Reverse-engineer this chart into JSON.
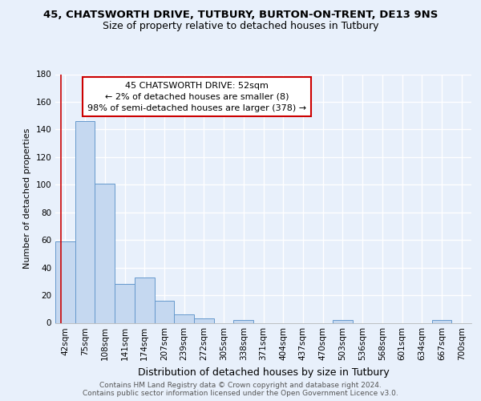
{
  "title1": "45, CHATSWORTH DRIVE, TUTBURY, BURTON-ON-TRENT, DE13 9NS",
  "title2": "Size of property relative to detached houses in Tutbury",
  "xlabel": "Distribution of detached houses by size in Tutbury",
  "ylabel": "Number of detached properties",
  "bar_labels": [
    "42sqm",
    "75sqm",
    "108sqm",
    "141sqm",
    "174sqm",
    "207sqm",
    "239sqm",
    "272sqm",
    "305sqm",
    "338sqm",
    "371sqm",
    "404sqm",
    "437sqm",
    "470sqm",
    "503sqm",
    "536sqm",
    "568sqm",
    "601sqm",
    "634sqm",
    "667sqm",
    "700sqm"
  ],
  "bar_values": [
    59,
    146,
    101,
    28,
    33,
    16,
    6,
    3,
    0,
    2,
    0,
    0,
    0,
    0,
    2,
    0,
    0,
    0,
    0,
    2,
    0
  ],
  "bar_color": "#c5d8f0",
  "bar_edge_color": "#6699cc",
  "ylim": [
    0,
    180
  ],
  "yticks": [
    0,
    20,
    40,
    60,
    80,
    100,
    120,
    140,
    160,
    180
  ],
  "annotation_box_text": "45 CHATSWORTH DRIVE: 52sqm\n← 2% of detached houses are smaller (8)\n98% of semi-detached houses are larger (378) →",
  "footer_text": "Contains HM Land Registry data © Crown copyright and database right 2024.\nContains public sector information licensed under the Open Government Licence v3.0.",
  "bg_color": "#e8f0fb",
  "plot_bg_color": "#e8f0fb",
  "grid_color": "#d0d8e8",
  "red_line_color": "#cc0000",
  "annotation_box_edge_color": "#cc0000",
  "title1_fontsize": 9.5,
  "title2_fontsize": 9,
  "xlabel_fontsize": 9,
  "ylabel_fontsize": 8,
  "tick_fontsize": 7.5,
  "annotation_fontsize": 8,
  "footer_fontsize": 6.5
}
